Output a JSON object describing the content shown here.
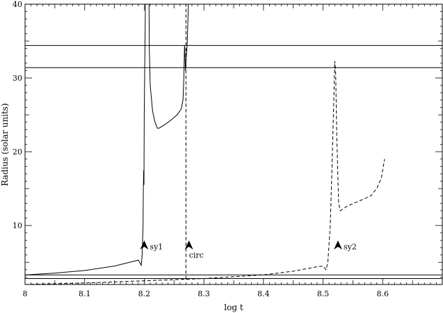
{
  "chart_data": {
    "type": "line",
    "xlabel": "log t",
    "ylabel": "Radius (solar units)",
    "xlim": [
      8.0,
      8.7
    ],
    "ylim": [
      2.0,
      40.0
    ],
    "x_ticks": [
      8.0,
      8.1,
      8.2,
      8.3,
      8.4,
      8.5,
      8.6
    ],
    "x_tick_labels": [
      "8",
      "8.1",
      "8.2",
      "8.3",
      "8.4",
      "8.5",
      "8.6"
    ],
    "y_ticks": [
      10,
      20,
      30,
      40
    ],
    "y_tick_labels": [
      "10",
      "20",
      "30",
      "40"
    ],
    "grid": false,
    "series": [
      {
        "style": "solid",
        "color": "#000000",
        "points": [
          [
            8.0,
            3.3
          ],
          [
            8.05,
            3.55
          ],
          [
            8.1,
            3.9
          ],
          [
            8.15,
            4.5
          ],
          [
            8.18,
            5.1
          ],
          [
            8.19,
            5.3
          ],
          [
            8.195,
            4.6
          ],
          [
            8.1965,
            6.0
          ],
          [
            8.198,
            10
          ],
          [
            8.1985,
            15
          ],
          [
            8.199,
            17.5
          ],
          [
            8.1995,
            15.5
          ],
          [
            8.2,
            25
          ],
          [
            8.202,
            40
          ],
          [
            8.208,
            40
          ],
          [
            8.2085,
            34
          ],
          [
            8.21,
            29
          ],
          [
            8.214,
            25.5
          ],
          [
            8.218,
            24
          ],
          [
            8.222,
            23.2
          ],
          [
            8.225,
            23.2
          ],
          [
            8.235,
            23.7
          ],
          [
            8.245,
            24.3
          ],
          [
            8.255,
            25.0
          ],
          [
            8.262,
            25.8
          ],
          [
            8.265,
            27.0
          ],
          [
            8.2665,
            30.0
          ],
          [
            8.2675,
            34.4
          ],
          [
            8.268,
            34.0
          ],
          [
            8.269,
            31.0
          ],
          [
            8.272,
            34.5
          ],
          [
            8.274,
            40
          ]
        ]
      },
      {
        "style": "dashed",
        "color": "#000000",
        "points": [
          [
            8.0,
            2.0
          ],
          [
            8.1,
            2.2
          ],
          [
            8.2,
            2.5
          ],
          [
            8.3,
            2.8
          ],
          [
            8.4,
            3.3
          ],
          [
            8.45,
            3.8
          ],
          [
            8.49,
            4.4
          ],
          [
            8.5,
            4.5
          ],
          [
            8.505,
            4.0
          ],
          [
            8.508,
            5.0
          ],
          [
            8.512,
            10
          ],
          [
            8.515,
            18
          ],
          [
            8.518,
            27
          ],
          [
            8.5195,
            32.3
          ],
          [
            8.521,
            31
          ],
          [
            8.523,
            22
          ],
          [
            8.526,
            13
          ],
          [
            8.529,
            12.0
          ],
          [
            8.54,
            12.6
          ],
          [
            8.56,
            13.3
          ],
          [
            8.58,
            14.0
          ],
          [
            8.59,
            15.0
          ],
          [
            8.598,
            16.5
          ],
          [
            8.603,
            19.0
          ]
        ]
      },
      {
        "style": "dashed",
        "color": "#000000",
        "points": [
          [
            8.27,
            2.7
          ],
          [
            8.27,
            40
          ]
        ]
      },
      {
        "style": "solid",
        "color": "#000000",
        "points": [
          [
            8.0,
            34.4
          ],
          [
            8.7,
            34.4
          ]
        ]
      },
      {
        "style": "solid",
        "color": "#000000",
        "points": [
          [
            8.0,
            31.4
          ],
          [
            8.7,
            31.4
          ]
        ]
      },
      {
        "style": "solid",
        "color": "#000000",
        "points": [
          [
            8.0,
            3.3
          ],
          [
            8.7,
            3.3
          ]
        ]
      },
      {
        "style": "solid",
        "color": "#000000",
        "points": [
          [
            8.0,
            2.8
          ],
          [
            8.7,
            2.8
          ]
        ]
      }
    ],
    "annotations": [
      {
        "label": "sy1",
        "x": 8.2,
        "y": 7.4
      },
      {
        "label": "circ",
        "x": 8.275,
        "y": 7.4
      },
      {
        "label": "sy2",
        "x": 8.525,
        "y": 7.4
      }
    ]
  }
}
